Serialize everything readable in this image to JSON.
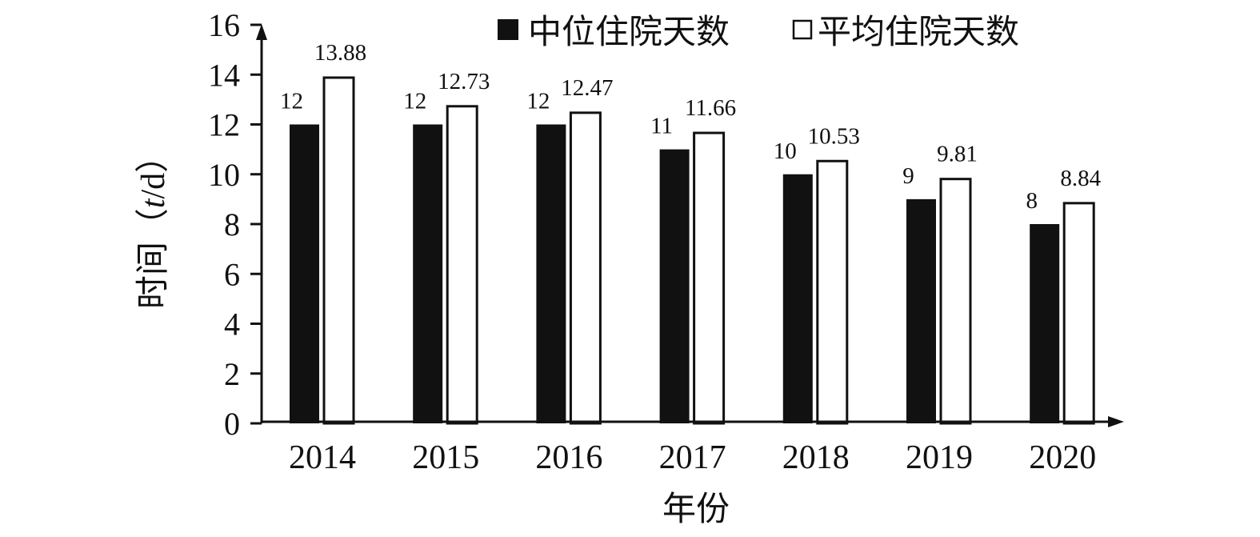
{
  "chart_data": {
    "type": "bar",
    "categories": [
      "2014",
      "2015",
      "2016",
      "2017",
      "2018",
      "2019",
      "2020"
    ],
    "series": [
      {
        "name": "中位住院天数",
        "values": [
          12,
          12,
          12,
          11,
          10,
          9,
          8
        ],
        "color": "#111111"
      },
      {
        "name": "平均住院天数",
        "values": [
          13.88,
          12.73,
          12.47,
          11.66,
          10.53,
          9.81,
          8.84
        ],
        "color": "#ffffff"
      }
    ],
    "data_labels": [
      [
        "12",
        "12",
        "12",
        "11",
        "10",
        "9",
        "8"
      ],
      [
        "13.88",
        "12.73",
        "12.47",
        "11.66",
        "10.53",
        "9.81",
        "8.84"
      ]
    ],
    "xlabel": "年份",
    "ylabel_prefix": "时间（",
    "ylabel_italic": "t",
    "ylabel_suffix": "/d）",
    "ylim": [
      0,
      16
    ],
    "yticks": [
      "0",
      "2",
      "4",
      "6",
      "8",
      "10",
      "12",
      "14",
      "16"
    ],
    "grid": false,
    "legend_position": "top-right"
  }
}
